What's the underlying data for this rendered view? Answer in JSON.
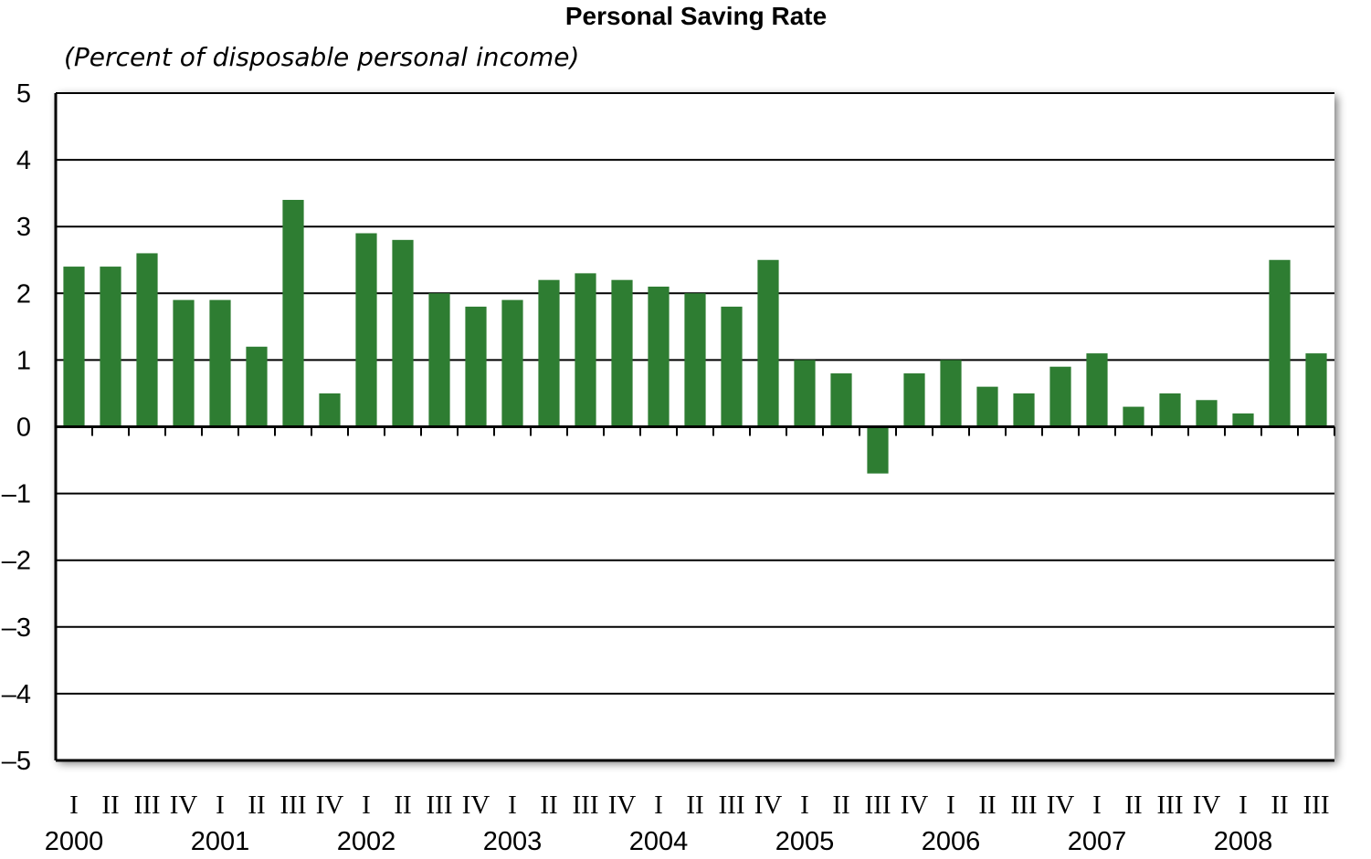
{
  "colors": {
    "bar": "#2e7d32",
    "plot_background": "#ffffff",
    "plot_shadow": "#9e9e9e"
  },
  "chart_data": {
    "type": "bar",
    "title": "Personal Saving Rate",
    "subtitle": "(Percent of disposable personal income)",
    "xlabel": "",
    "ylabel": "",
    "ylim": [
      -5,
      5
    ],
    "yticks": [
      "5",
      "4",
      "3",
      "2",
      "1",
      "0",
      "–1",
      "–2",
      "–3",
      "–4",
      "–5"
    ],
    "grid": true,
    "quarters": [
      "I",
      "II",
      "III",
      "IV",
      "I",
      "II",
      "III",
      "IV",
      "I",
      "II",
      "III",
      "IV",
      "I",
      "II",
      "III",
      "IV",
      "I",
      "II",
      "III",
      "IV",
      "I",
      "II",
      "III",
      "IV",
      "I",
      "II",
      "III",
      "IV",
      "I",
      "II",
      "III",
      "IV",
      "I",
      "II",
      "III"
    ],
    "years": [
      "2000",
      "2001",
      "2002",
      "2003",
      "2004",
      "2005",
      "2006",
      "2007",
      "2008"
    ],
    "series": [
      {
        "values": [
          2.4,
          2.4,
          2.6,
          1.9,
          1.9,
          1.2,
          3.4,
          0.5,
          2.9,
          2.8,
          2.0,
          1.8,
          1.9,
          2.2,
          2.3,
          2.2,
          2.1,
          2.0,
          1.8,
          2.5,
          1.0,
          0.8,
          -0.7,
          0.8,
          1.0,
          0.6,
          0.5,
          0.9,
          1.1,
          0.3,
          0.5,
          0.4,
          0.2,
          2.5,
          1.1
        ]
      }
    ]
  }
}
